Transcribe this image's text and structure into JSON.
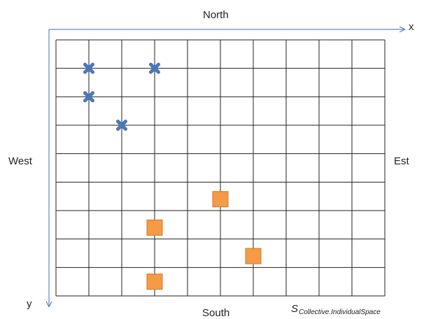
{
  "directions": {
    "north": "North",
    "south": "South",
    "west": "West",
    "east": "Est"
  },
  "axes": {
    "x_label": "x",
    "y_label": "y"
  },
  "space_label": {
    "symbol": "S",
    "subscript": "Collective.IndividualSpace"
  },
  "grid": {
    "columns": 10,
    "rows": 9,
    "line_color": "#222222",
    "axis_color": "#5b8bc9"
  },
  "markers": {
    "cross_color": "#4a78b8",
    "square_color": "#f59a45",
    "square_border": "#d07a2a",
    "crosses": [
      {
        "col": 1,
        "row": 1
      },
      {
        "col": 3,
        "row": 1
      },
      {
        "col": 1,
        "row": 2
      },
      {
        "col": 2,
        "row": 3
      }
    ],
    "squares": [
      {
        "col": 5,
        "row": 5.6
      },
      {
        "col": 3,
        "row": 6.6
      },
      {
        "col": 6,
        "row": 7.6
      },
      {
        "col": 3,
        "row": 8.5
      }
    ]
  }
}
